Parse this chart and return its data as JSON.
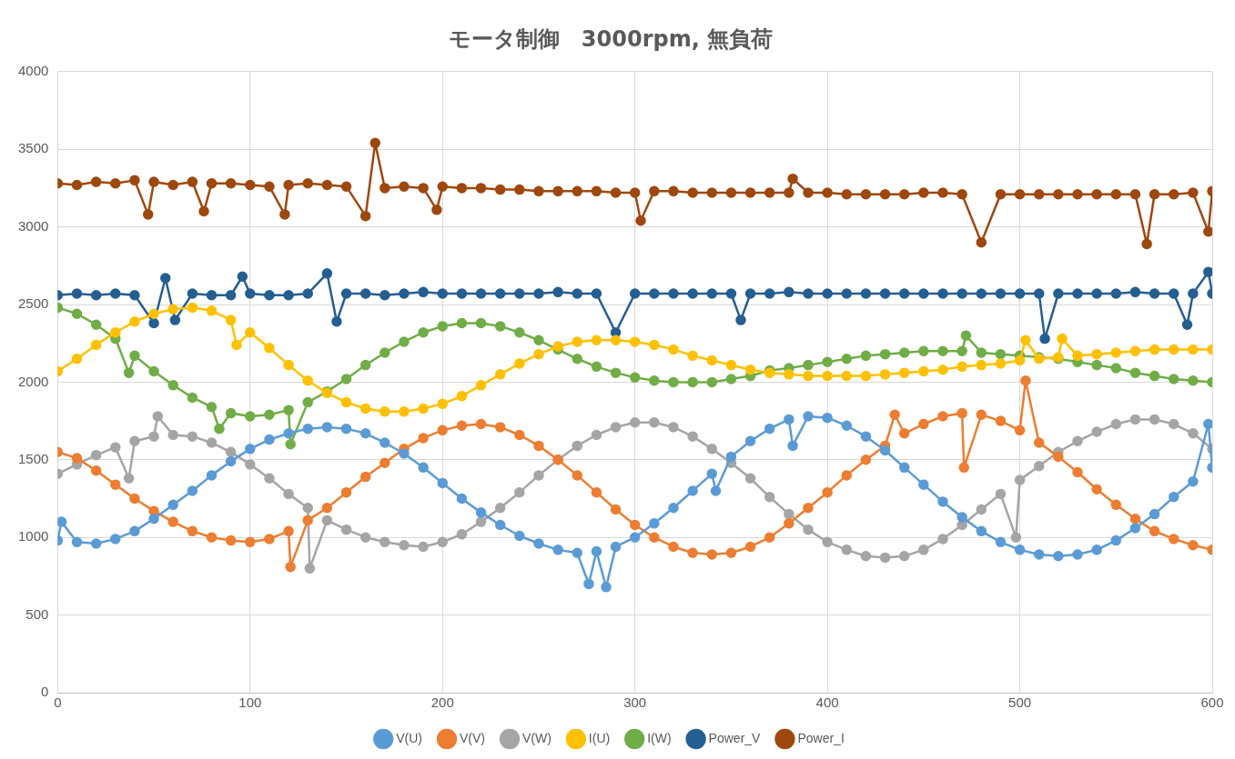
{
  "chart_data": {
    "type": "line",
    "title": "モータ制御　3000rpm, 無負荷",
    "xlim": [
      0,
      600
    ],
    "xticks": [
      0,
      100,
      200,
      300,
      400,
      500,
      600
    ],
    "ylim": [
      0,
      4000
    ],
    "yticks": [
      0,
      500,
      1000,
      1500,
      2000,
      2500,
      3000,
      3500,
      4000
    ],
    "grid": true,
    "legend": "bottom",
    "marker": "circle",
    "line_style": "solid",
    "series": [
      {
        "name": "V(U)",
        "color": "#5b9bd5",
        "x": [
          0,
          2,
          10,
          20,
          30,
          40,
          50,
          60,
          70,
          80,
          90,
          100,
          110,
          120,
          130,
          140,
          150,
          160,
          170,
          180,
          190,
          200,
          210,
          220,
          230,
          240,
          250,
          260,
          270,
          276,
          280,
          285,
          290,
          300,
          310,
          320,
          330,
          340,
          342,
          350,
          360,
          370,
          380,
          382,
          390,
          400,
          410,
          420,
          430,
          440,
          450,
          460,
          470,
          480,
          490,
          500,
          510,
          520,
          530,
          540,
          550,
          560,
          570,
          580,
          590,
          598,
          600
        ],
        "values": [
          980,
          1100,
          970,
          960,
          990,
          1040,
          1120,
          1210,
          1300,
          1400,
          1490,
          1570,
          1630,
          1670,
          1700,
          1710,
          1700,
          1670,
          1610,
          1540,
          1450,
          1350,
          1250,
          1160,
          1080,
          1010,
          960,
          920,
          900,
          700,
          910,
          680,
          940,
          1000,
          1090,
          1190,
          1300,
          1410,
          1300,
          1520,
          1620,
          1700,
          1760,
          1590,
          1780,
          1770,
          1720,
          1650,
          1560,
          1450,
          1340,
          1230,
          1130,
          1040,
          970,
          920,
          890,
          880,
          890,
          920,
          980,
          1060,
          1150,
          1260,
          1360,
          1730,
          1450
        ]
      },
      {
        "name": "V(V)",
        "color": "#ed7d31",
        "x": [
          0,
          10,
          20,
          30,
          40,
          50,
          60,
          70,
          80,
          90,
          100,
          110,
          120,
          121,
          130,
          140,
          150,
          160,
          170,
          180,
          190,
          200,
          210,
          220,
          230,
          240,
          250,
          260,
          270,
          280,
          290,
          300,
          310,
          320,
          330,
          340,
          350,
          360,
          370,
          380,
          390,
          400,
          410,
          420,
          430,
          435,
          440,
          450,
          460,
          470,
          471,
          480,
          490,
          500,
          503,
          510,
          520,
          530,
          540,
          550,
          560,
          570,
          580,
          590,
          600
        ],
        "values": [
          1550,
          1510,
          1430,
          1340,
          1250,
          1170,
          1100,
          1040,
          1000,
          980,
          970,
          990,
          1040,
          810,
          1110,
          1190,
          1290,
          1390,
          1480,
          1570,
          1640,
          1690,
          1720,
          1730,
          1710,
          1660,
          1590,
          1500,
          1400,
          1290,
          1180,
          1080,
          1000,
          940,
          900,
          890,
          900,
          940,
          1000,
          1090,
          1190,
          1290,
          1400,
          1500,
          1590,
          1790,
          1670,
          1730,
          1780,
          1800,
          1450,
          1790,
          1750,
          1690,
          2010,
          1610,
          1520,
          1420,
          1310,
          1210,
          1120,
          1040,
          990,
          950,
          920
        ]
      },
      {
        "name": "V(W)",
        "color": "#a5a5a5",
        "x": [
          0,
          10,
          20,
          30,
          37,
          40,
          50,
          52,
          60,
          70,
          80,
          90,
          100,
          110,
          120,
          130,
          131,
          140,
          150,
          160,
          170,
          180,
          190,
          200,
          210,
          220,
          230,
          240,
          250,
          260,
          270,
          280,
          290,
          300,
          310,
          320,
          330,
          340,
          350,
          360,
          370,
          380,
          390,
          400,
          410,
          420,
          430,
          440,
          450,
          460,
          470,
          480,
          490,
          498,
          500,
          510,
          520,
          530,
          540,
          550,
          560,
          570,
          580,
          590,
          600
        ],
        "values": [
          1410,
          1470,
          1530,
          1580,
          1380,
          1620,
          1650,
          1780,
          1660,
          1650,
          1610,
          1550,
          1470,
          1380,
          1280,
          1190,
          800,
          1110,
          1050,
          1000,
          970,
          950,
          940,
          970,
          1020,
          1100,
          1190,
          1290,
          1400,
          1500,
          1590,
          1660,
          1710,
          1740,
          1740,
          1710,
          1650,
          1570,
          1480,
          1380,
          1260,
          1150,
          1050,
          970,
          920,
          880,
          870,
          880,
          920,
          990,
          1080,
          1180,
          1280,
          1000,
          1370,
          1460,
          1550,
          1620,
          1680,
          1730,
          1760,
          1760,
          1730,
          1670,
          1570
        ]
      },
      {
        "name": "I(U)",
        "color": "#ffc000",
        "x": [
          0,
          10,
          20,
          30,
          40,
          50,
          60,
          70,
          80,
          90,
          93,
          100,
          110,
          120,
          130,
          140,
          150,
          160,
          170,
          180,
          190,
          200,
          210,
          220,
          230,
          240,
          250,
          260,
          270,
          280,
          290,
          300,
          310,
          320,
          330,
          340,
          350,
          360,
          370,
          380,
          390,
          400,
          410,
          420,
          430,
          440,
          450,
          460,
          470,
          480,
          490,
          500,
          503,
          510,
          520,
          522,
          530,
          540,
          550,
          560,
          570,
          580,
          590,
          600
        ],
        "values": [
          2070,
          2150,
          2240,
          2320,
          2390,
          2440,
          2470,
          2480,
          2460,
          2400,
          2240,
          2320,
          2220,
          2110,
          2010,
          1930,
          1870,
          1830,
          1810,
          1810,
          1830,
          1860,
          1910,
          1980,
          2050,
          2120,
          2180,
          2230,
          2260,
          2270,
          2270,
          2260,
          2240,
          2210,
          2170,
          2140,
          2110,
          2080,
          2060,
          2050,
          2040,
          2040,
          2040,
          2040,
          2050,
          2060,
          2070,
          2080,
          2100,
          2110,
          2120,
          2140,
          2270,
          2150,
          2160,
          2280,
          2170,
          2180,
          2190,
          2200,
          2210,
          2210,
          2210,
          2210
        ]
      },
      {
        "name": "I(W)",
        "color": "#70ad47",
        "x": [
          0,
          10,
          20,
          30,
          37,
          40,
          50,
          60,
          70,
          80,
          84,
          90,
          100,
          110,
          120,
          121,
          130,
          140,
          150,
          160,
          170,
          180,
          190,
          200,
          210,
          220,
          230,
          240,
          250,
          260,
          270,
          280,
          290,
          300,
          310,
          320,
          330,
          340,
          350,
          360,
          370,
          380,
          390,
          400,
          410,
          420,
          430,
          440,
          450,
          460,
          470,
          472,
          480,
          490,
          500,
          510,
          520,
          530,
          540,
          550,
          560,
          570,
          580,
          590,
          600
        ],
        "values": [
          2480,
          2440,
          2370,
          2280,
          2060,
          2170,
          2070,
          1980,
          1900,
          1840,
          1700,
          1800,
          1780,
          1790,
          1820,
          1600,
          1870,
          1940,
          2020,
          2110,
          2190,
          2260,
          2320,
          2360,
          2380,
          2380,
          2360,
          2320,
          2270,
          2210,
          2150,
          2100,
          2060,
          2030,
          2010,
          2000,
          2000,
          2000,
          2020,
          2040,
          2075,
          2090,
          2110,
          2130,
          2150,
          2170,
          2180,
          2190,
          2200,
          2200,
          2200,
          2300,
          2190,
          2180,
          2170,
          2160,
          2150,
          2130,
          2110,
          2090,
          2060,
          2040,
          2020,
          2010,
          2000
        ]
      },
      {
        "name": "Power_V",
        "color": "#255e91",
        "x": [
          0,
          10,
          20,
          30,
          40,
          50,
          56,
          61,
          70,
          80,
          90,
          96,
          100,
          110,
          120,
          130,
          140,
          145,
          150,
          160,
          170,
          180,
          190,
          200,
          210,
          220,
          230,
          240,
          250,
          260,
          270,
          280,
          290,
          300,
          310,
          320,
          330,
          340,
          350,
          355,
          360,
          370,
          380,
          390,
          400,
          410,
          420,
          430,
          440,
          450,
          460,
          470,
          480,
          490,
          500,
          510,
          513,
          520,
          530,
          540,
          550,
          560,
          570,
          580,
          587,
          590,
          598,
          600
        ],
        "values": [
          2560,
          2570,
          2560,
          2570,
          2560,
          2380,
          2670,
          2400,
          2570,
          2560,
          2560,
          2680,
          2570,
          2560,
          2560,
          2570,
          2700,
          2390,
          2570,
          2570,
          2560,
          2570,
          2580,
          2570,
          2570,
          2570,
          2570,
          2570,
          2570,
          2580,
          2570,
          2570,
          2320,
          2570,
          2570,
          2570,
          2570,
          2570,
          2570,
          2400,
          2570,
          2570,
          2580,
          2570,
          2570,
          2570,
          2570,
          2570,
          2570,
          2570,
          2570,
          2570,
          2570,
          2570,
          2570,
          2570,
          2280,
          2570,
          2570,
          2570,
          2570,
          2580,
          2570,
          2570,
          2370,
          2570,
          2710,
          2570
        ]
      },
      {
        "name": "Power_I",
        "color": "#9e480e",
        "x": [
          0,
          10,
          20,
          30,
          40,
          47,
          50,
          60,
          70,
          76,
          80,
          90,
          100,
          110,
          118,
          120,
          130,
          140,
          150,
          160,
          165,
          170,
          180,
          190,
          197,
          200,
          210,
          220,
          230,
          240,
          250,
          260,
          270,
          280,
          290,
          300,
          303,
          310,
          320,
          330,
          340,
          350,
          360,
          370,
          380,
          382,
          390,
          400,
          410,
          420,
          430,
          440,
          450,
          460,
          470,
          480,
          490,
          500,
          510,
          520,
          530,
          540,
          550,
          560,
          566,
          570,
          580,
          590,
          598,
          600
        ],
        "values": [
          3280,
          3270,
          3290,
          3280,
          3300,
          3080,
          3290,
          3270,
          3290,
          3100,
          3280,
          3280,
          3270,
          3260,
          3080,
          3270,
          3280,
          3270,
          3260,
          3070,
          3540,
          3250,
          3260,
          3250,
          3110,
          3260,
          3250,
          3250,
          3240,
          3240,
          3230,
          3230,
          3230,
          3230,
          3220,
          3220,
          3040,
          3230,
          3230,
          3220,
          3220,
          3220,
          3220,
          3220,
          3220,
          3310,
          3220,
          3220,
          3210,
          3210,
          3210,
          3210,
          3220,
          3220,
          3210,
          2900,
          3210,
          3210,
          3210,
          3210,
          3210,
          3210,
          3210,
          3210,
          2890,
          3210,
          3210,
          3220,
          2970,
          3230
        ]
      }
    ]
  }
}
